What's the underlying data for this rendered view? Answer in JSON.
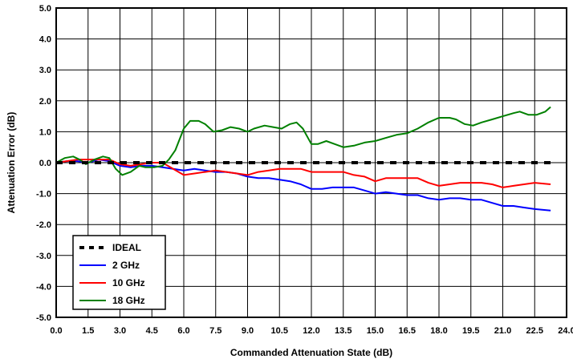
{
  "chart_data": {
    "type": "line",
    "title": "",
    "xlabel": "Commanded Attenuation State (dB)",
    "ylabel": "Attenuation Error (dB)",
    "xlim": [
      0,
      24
    ],
    "ylim": [
      -5,
      5
    ],
    "x_ticks": [
      "0.0",
      "1.5",
      "3.0",
      "4.5",
      "6.0",
      "7.5",
      "9.0",
      "10.5",
      "12.0",
      "13.5",
      "15.0",
      "16.5",
      "18.0",
      "19.5",
      "21.0",
      "22.5",
      "24.0"
    ],
    "y_ticks": [
      "5.0",
      "4.0",
      "3.0",
      "2.0",
      "1.0",
      "0.0",
      "-1.0",
      "-2.0",
      "-3.0",
      "-4.0",
      "-5.0"
    ],
    "grid": true,
    "legend_position": "bottom-left",
    "series": [
      {
        "name": "IDEAL",
        "color": "#000000",
        "style": "dashed",
        "points": [
          [
            0,
            0
          ],
          [
            23.25,
            0
          ]
        ]
      },
      {
        "name": "2 GHz",
        "color": "#0000ff",
        "style": "solid",
        "points": [
          [
            0,
            0
          ],
          [
            0.5,
            0.05
          ],
          [
            1.0,
            0.05
          ],
          [
            1.5,
            0.0
          ],
          [
            2.0,
            0.1
          ],
          [
            2.5,
            0.05
          ],
          [
            3.0,
            -0.1
          ],
          [
            3.5,
            -0.15
          ],
          [
            4.0,
            -0.1
          ],
          [
            4.5,
            -0.1
          ],
          [
            5.0,
            -0.15
          ],
          [
            5.5,
            -0.2
          ],
          [
            6.0,
            -0.25
          ],
          [
            6.5,
            -0.2
          ],
          [
            7.0,
            -0.25
          ],
          [
            7.5,
            -0.3
          ],
          [
            8.0,
            -0.3
          ],
          [
            8.5,
            -0.35
          ],
          [
            9.0,
            -0.45
          ],
          [
            9.5,
            -0.5
          ],
          [
            10.0,
            -0.5
          ],
          [
            10.5,
            -0.55
          ],
          [
            11.0,
            -0.6
          ],
          [
            11.5,
            -0.7
          ],
          [
            12.0,
            -0.85
          ],
          [
            12.5,
            -0.85
          ],
          [
            13.0,
            -0.8
          ],
          [
            13.5,
            -0.8
          ],
          [
            14.0,
            -0.8
          ],
          [
            14.5,
            -0.9
          ],
          [
            15.0,
            -1.0
          ],
          [
            15.5,
            -0.95
          ],
          [
            16.0,
            -1.0
          ],
          [
            16.5,
            -1.05
          ],
          [
            17.0,
            -1.05
          ],
          [
            17.5,
            -1.15
          ],
          [
            18.0,
            -1.2
          ],
          [
            18.5,
            -1.15
          ],
          [
            19.0,
            -1.15
          ],
          [
            19.5,
            -1.2
          ],
          [
            20.0,
            -1.2
          ],
          [
            20.5,
            -1.3
          ],
          [
            21.0,
            -1.4
          ],
          [
            21.5,
            -1.4
          ],
          [
            22.0,
            -1.45
          ],
          [
            22.5,
            -1.5
          ],
          [
            23.25,
            -1.55
          ]
        ]
      },
      {
        "name": "10 GHz",
        "color": "#ff0000",
        "style": "solid",
        "points": [
          [
            0,
            0
          ],
          [
            0.5,
            0.05
          ],
          [
            1.0,
            0.1
          ],
          [
            1.5,
            0.1
          ],
          [
            2.0,
            0.1
          ],
          [
            2.5,
            0.1
          ],
          [
            3.0,
            -0.05
          ],
          [
            3.5,
            -0.1
          ],
          [
            4.0,
            -0.05
          ],
          [
            4.5,
            0.0
          ],
          [
            5.0,
            0.0
          ],
          [
            5.5,
            -0.2
          ],
          [
            6.0,
            -0.4
          ],
          [
            6.5,
            -0.35
          ],
          [
            7.0,
            -0.3
          ],
          [
            7.5,
            -0.25
          ],
          [
            8.0,
            -0.3
          ],
          [
            8.5,
            -0.35
          ],
          [
            9.0,
            -0.4
          ],
          [
            9.5,
            -0.3
          ],
          [
            10.0,
            -0.25
          ],
          [
            10.5,
            -0.2
          ],
          [
            11.0,
            -0.2
          ],
          [
            11.5,
            -0.2
          ],
          [
            12.0,
            -0.3
          ],
          [
            12.5,
            -0.3
          ],
          [
            13.0,
            -0.3
          ],
          [
            13.5,
            -0.3
          ],
          [
            14.0,
            -0.4
          ],
          [
            14.5,
            -0.45
          ],
          [
            15.0,
            -0.6
          ],
          [
            15.5,
            -0.5
          ],
          [
            16.0,
            -0.5
          ],
          [
            16.5,
            -0.5
          ],
          [
            17.0,
            -0.5
          ],
          [
            17.5,
            -0.65
          ],
          [
            18.0,
            -0.75
          ],
          [
            18.5,
            -0.7
          ],
          [
            19.0,
            -0.65
          ],
          [
            19.5,
            -0.65
          ],
          [
            20.0,
            -0.65
          ],
          [
            20.5,
            -0.7
          ],
          [
            21.0,
            -0.8
          ],
          [
            21.5,
            -0.75
          ],
          [
            22.0,
            -0.7
          ],
          [
            22.5,
            -0.65
          ],
          [
            23.25,
            -0.7
          ]
        ]
      },
      {
        "name": "18 GHz",
        "color": "#008000",
        "style": "solid",
        "points": [
          [
            0,
            0
          ],
          [
            0.4,
            0.15
          ],
          [
            0.8,
            0.2
          ],
          [
            1.1,
            0.1
          ],
          [
            1.4,
            -0.05
          ],
          [
            1.8,
            0.1
          ],
          [
            2.2,
            0.2
          ],
          [
            2.5,
            0.15
          ],
          [
            2.8,
            -0.2
          ],
          [
            3.1,
            -0.4
          ],
          [
            3.5,
            -0.3
          ],
          [
            3.9,
            -0.1
          ],
          [
            4.2,
            -0.15
          ],
          [
            4.6,
            -0.15
          ],
          [
            5.0,
            -0.1
          ],
          [
            5.3,
            0.1
          ],
          [
            5.6,
            0.4
          ],
          [
            6.0,
            1.1
          ],
          [
            6.3,
            1.35
          ],
          [
            6.7,
            1.35
          ],
          [
            7.0,
            1.25
          ],
          [
            7.4,
            1.0
          ],
          [
            7.8,
            1.05
          ],
          [
            8.2,
            1.15
          ],
          [
            8.6,
            1.1
          ],
          [
            9.0,
            1.0
          ],
          [
            9.3,
            1.1
          ],
          [
            9.8,
            1.2
          ],
          [
            10.2,
            1.15
          ],
          [
            10.6,
            1.1
          ],
          [
            11.0,
            1.25
          ],
          [
            11.3,
            1.3
          ],
          [
            11.6,
            1.1
          ],
          [
            12.0,
            0.6
          ],
          [
            12.3,
            0.6
          ],
          [
            12.7,
            0.7
          ],
          [
            13.1,
            0.6
          ],
          [
            13.5,
            0.5
          ],
          [
            14.0,
            0.55
          ],
          [
            14.5,
            0.65
          ],
          [
            15.0,
            0.7
          ],
          [
            15.5,
            0.8
          ],
          [
            16.0,
            0.9
          ],
          [
            16.5,
            0.95
          ],
          [
            17.0,
            1.1
          ],
          [
            17.5,
            1.3
          ],
          [
            18.0,
            1.45
          ],
          [
            18.5,
            1.45
          ],
          [
            18.8,
            1.4
          ],
          [
            19.2,
            1.25
          ],
          [
            19.6,
            1.2
          ],
          [
            20.0,
            1.3
          ],
          [
            20.5,
            1.4
          ],
          [
            21.0,
            1.5
          ],
          [
            21.5,
            1.6
          ],
          [
            21.8,
            1.65
          ],
          [
            22.2,
            1.55
          ],
          [
            22.6,
            1.55
          ],
          [
            23.0,
            1.65
          ],
          [
            23.25,
            1.8
          ]
        ]
      }
    ]
  }
}
